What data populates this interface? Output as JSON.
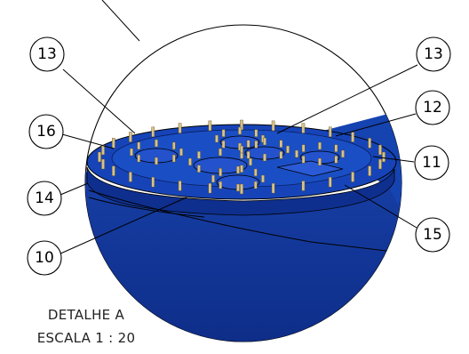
{
  "detail_view": {
    "caption_title": "DETALHE A",
    "caption_scale": "ESCALA 1 : 20",
    "balloons": [
      {
        "id": "balloon-13-left",
        "label": "13"
      },
      {
        "id": "balloon-13-right",
        "label": "13"
      },
      {
        "id": "balloon-12",
        "label": "12"
      },
      {
        "id": "balloon-16",
        "label": "16"
      },
      {
        "id": "balloon-11",
        "label": "11"
      },
      {
        "id": "balloon-14",
        "label": "14"
      },
      {
        "id": "balloon-15",
        "label": "15"
      },
      {
        "id": "balloon-10",
        "label": "10"
      }
    ]
  },
  "colors": {
    "part_body": "#123a9c",
    "part_dark": "#0b2470",
    "part_light": "#2f5ad0",
    "bolt": "#d7c28a",
    "line": "#000000"
  }
}
